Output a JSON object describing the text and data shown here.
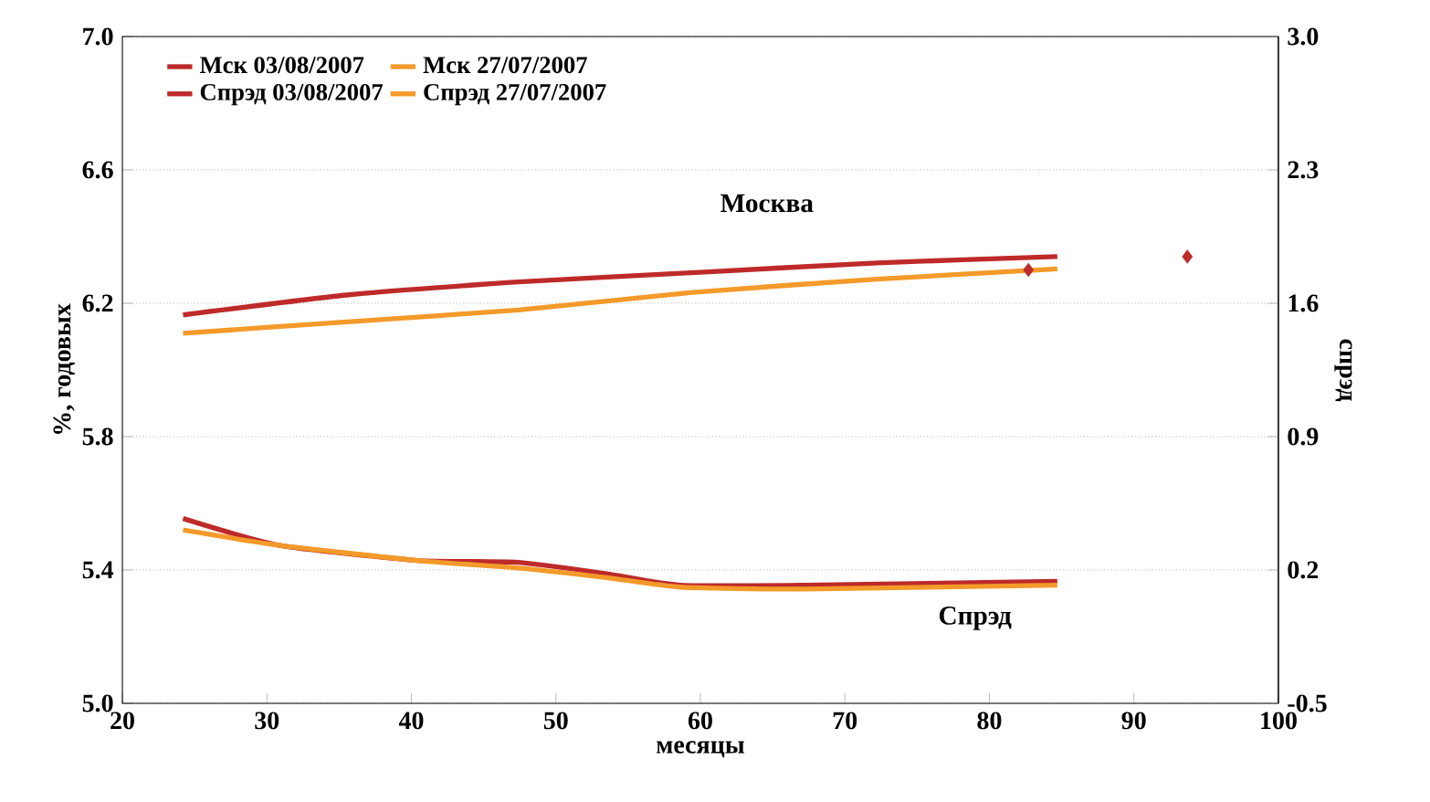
{
  "chart_data": {
    "type": "line",
    "xlabel": "месяцы",
    "ylabel": "%, годовых",
    "y2label": "спрэд",
    "xlim": [
      20,
      100
    ],
    "xticks": [
      20,
      30,
      40,
      50,
      60,
      70,
      80,
      90,
      100
    ],
    "ylim": [
      5.0,
      7.0
    ],
    "yticks": [
      {
        "value": 5.0,
        "label": "5.0"
      },
      5.4,
      5.8,
      6.2,
      6.6,
      {
        "value": 7.0,
        "label": "7.0"
      }
    ],
    "y2lim": [
      -0.5,
      3.0
    ],
    "y2ticks": [
      -0.5,
      0.2,
      0.9,
      1.6,
      2.3,
      {
        "value": 3.0,
        "label": "3.0"
      }
    ],
    "grid": "y",
    "legend": "top left",
    "annotations": [
      "Москва",
      "Спрэд"
    ],
    "series": [
      {
        "name": "Мск 03/08/2007",
        "color": "#be2a2a",
        "x": [
          24.2,
          35.8,
          47.4,
          59.6,
          72.2,
          84.7
        ],
        "values": [
          6.165,
          6.226,
          6.264,
          6.292,
          6.321,
          6.34
        ]
      },
      {
        "name": "Мск 27/07/2007",
        "color": "#f39a2a",
        "x": [
          24.2,
          35.8,
          47.4,
          59.6,
          72.2,
          84.7
        ],
        "values": [
          6.11,
          6.145,
          6.18,
          6.233,
          6.272,
          6.303
        ]
      },
      {
        "name": "Спрэд 03/08/2007",
        "color": "#be2a2a",
        "axis": "y2",
        "x": [
          24.2,
          30.8,
          40.4,
          47.4,
          53.5,
          58.6,
          67.2,
          84.7
        ],
        "values": [
          0.47,
          0.33,
          0.25,
          0.24,
          0.18,
          0.12,
          0.12,
          0.14
        ]
      },
      {
        "name": "Спрэд 27/07/2007",
        "color": "#f39a2a",
        "axis": "y2",
        "x": [
          24.2,
          30.8,
          40.4,
          47.4,
          53.5,
          58.6,
          67.2,
          84.7
        ],
        "values": [
          0.41,
          0.33,
          0.25,
          0.21,
          0.16,
          0.11,
          0.1,
          0.12
        ]
      },
      {
        "type": "scatter",
        "marker": "diamond",
        "color": "#be2a2a",
        "x": [
          82.7,
          93.7
        ],
        "values": [
          6.3,
          6.34
        ]
      }
    ]
  }
}
